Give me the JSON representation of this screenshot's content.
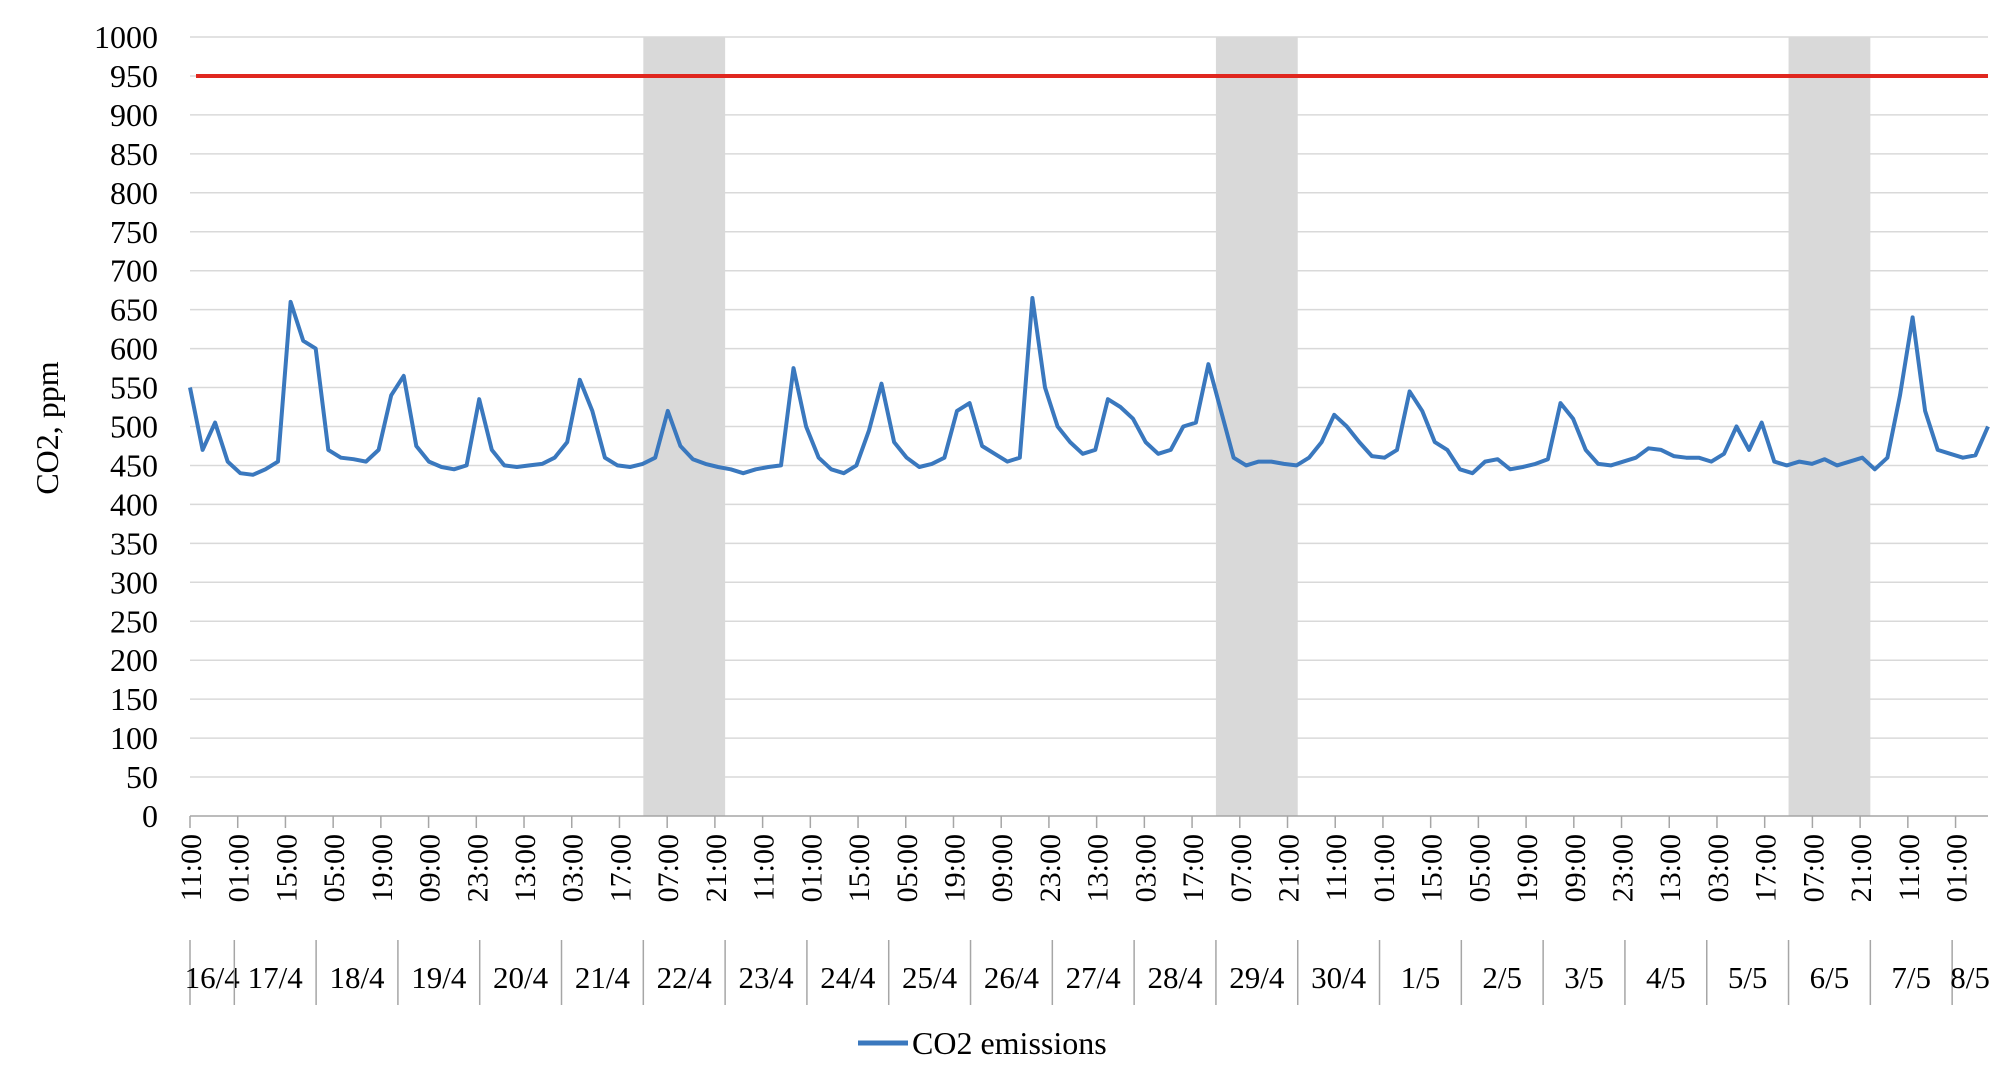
{
  "chart_data": {
    "type": "line",
    "title": "",
    "xlabel": "",
    "ylabel": "CO2, ppm",
    "ylim": [
      0,
      1000
    ],
    "ytick_step": 50,
    "grid": "horizontal",
    "legend_position": "bottom-center",
    "threshold": {
      "value": 950,
      "color": "#e0271f"
    },
    "colors": {
      "series": "#3a78be",
      "shading": "#d9d9d9",
      "grid": "#d9d9d9",
      "axis": "#a6a6a6"
    },
    "x_time_ticks": [
      "11:00",
      "01:00",
      "15:00",
      "05:00",
      "19:00",
      "09:00",
      "23:00",
      "13:00",
      "03:00",
      "17:00",
      "07:00",
      "21:00",
      "11:00",
      "01:00",
      "15:00",
      "05:00",
      "19:00",
      "09:00",
      "23:00",
      "13:00",
      "03:00",
      "17:00",
      "07:00",
      "21:00",
      "11:00",
      "01:00",
      "15:00",
      "05:00",
      "19:00",
      "09:00",
      "23:00",
      "13:00",
      "03:00",
      "17:00",
      "07:00",
      "21:00",
      "11:00",
      "01:00"
    ],
    "x_dates": [
      "16/4",
      "17/4",
      "18/4",
      "19/4",
      "20/4",
      "21/4",
      "22/4",
      "23/4",
      "24/4",
      "25/4",
      "26/4",
      "27/4",
      "28/4",
      "29/4",
      "30/4",
      "1/5",
      "2/5",
      "3/5",
      "4/5",
      "5/5",
      "6/5",
      "7/5",
      "8/5"
    ],
    "shaded_days": [
      "22/4",
      "29/4",
      "6/5"
    ],
    "series": [
      {
        "name": "CO2 emissions",
        "x_start": "16/4 11:00",
        "x_step_hours": 14,
        "values": [
          550,
          470,
          505,
          455,
          440,
          438,
          445,
          455,
          660,
          610,
          600,
          470,
          460,
          458,
          455,
          470,
          540,
          565,
          475,
          455,
          448,
          445,
          450,
          535,
          470,
          450,
          448,
          450,
          452,
          460,
          480,
          560,
          520,
          460,
          450,
          448,
          452,
          460,
          520,
          475,
          458,
          452,
          448,
          445,
          440,
          445,
          448,
          450,
          575,
          500,
          460,
          445,
          440,
          450,
          495,
          555,
          480,
          460,
          448,
          452,
          460,
          520,
          530,
          475,
          465,
          455,
          460,
          665,
          550,
          500,
          480,
          465,
          470,
          535,
          525,
          510,
          480,
          465,
          470,
          500,
          505,
          580,
          520,
          460,
          450,
          455,
          455,
          452,
          450,
          460,
          480,
          515,
          500,
          480,
          462,
          460,
          470,
          545,
          520,
          480,
          470,
          445,
          440,
          455,
          458,
          445,
          448,
          452,
          458,
          530,
          510,
          470,
          452,
          450,
          455,
          460,
          472,
          470,
          462,
          460,
          460,
          455,
          465,
          500,
          470,
          505,
          455,
          450,
          455,
          452,
          458,
          450,
          455,
          460,
          445,
          460,
          540,
          640,
          520,
          470,
          465,
          460,
          463,
          500
        ]
      }
    ]
  }
}
